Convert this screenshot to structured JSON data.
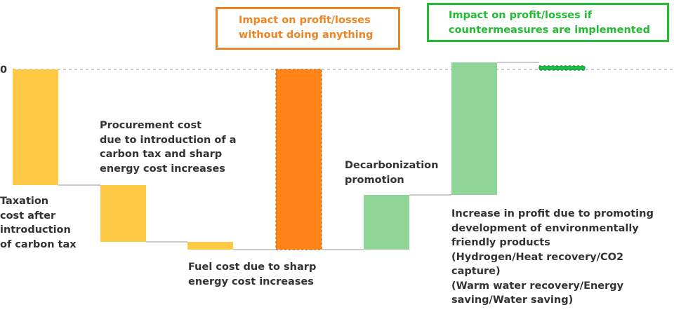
{
  "chart_data": {
    "type": "waterfall",
    "zero_label": "0",
    "baseline_dashed": true,
    "bars": [
      {
        "name": "Taxation cost after introduction of carbon tax",
        "start": 0,
        "end": -165,
        "color": "#FFC845"
      },
      {
        "name": "Procurement cost due to introduction of a carbon tax and sharp energy cost increases",
        "start": -165,
        "end": -246,
        "color": "#FFC845"
      },
      {
        "name": "Fuel cost due to sharp energy cost increases",
        "start": -246,
        "end": -257,
        "color": "#FFC845"
      },
      {
        "name": "Impact on profit/losses without doing anything",
        "start": 0,
        "end": -257,
        "color": "#FF8316",
        "dashed_border": true
      },
      {
        "name": "Decarbonization promotion",
        "start": -257,
        "end": -179,
        "color": "#90D598"
      },
      {
        "name": "Increase in profit due to promoting development of environmentally friendly products",
        "start": -179,
        "end": 10,
        "color": "#90D598"
      },
      {
        "name": "Impact on profit/losses if countermeasures are implemented",
        "start": 5,
        "end": -1,
        "color": "#22BB44",
        "dashed_border": true
      }
    ],
    "y_range": [
      -260,
      12
    ]
  },
  "labels": {
    "taxation": "Taxation\ncost after\nintroduction\nof carbon tax",
    "procurement": "Procurement cost\ndue to introduction of a\ncarbon tax and sharp\nenergy cost increases",
    "fuel": "Fuel cost due to sharp\nenergy cost increases",
    "decarbonization": "Decarbonization\npromotion",
    "increase": "Increase in profit due to promoting\ndevelopment of environmentally\nfriendly products\n(Hydrogen/Heat recovery/CO2\ncapture)\n(Warm water recovery/Energy\nsaving/Water saving)",
    "without_box": "Impact on profit/losses\nwithout doing anything",
    "with_box": "Impact on profit/losses if\ncountermeasures are implemented"
  },
  "colors": {
    "orange_box": "#EE8422",
    "green_box": "#22BB33",
    "connector": "#AAAAAA",
    "zero_line": "#AAAAAA"
  }
}
